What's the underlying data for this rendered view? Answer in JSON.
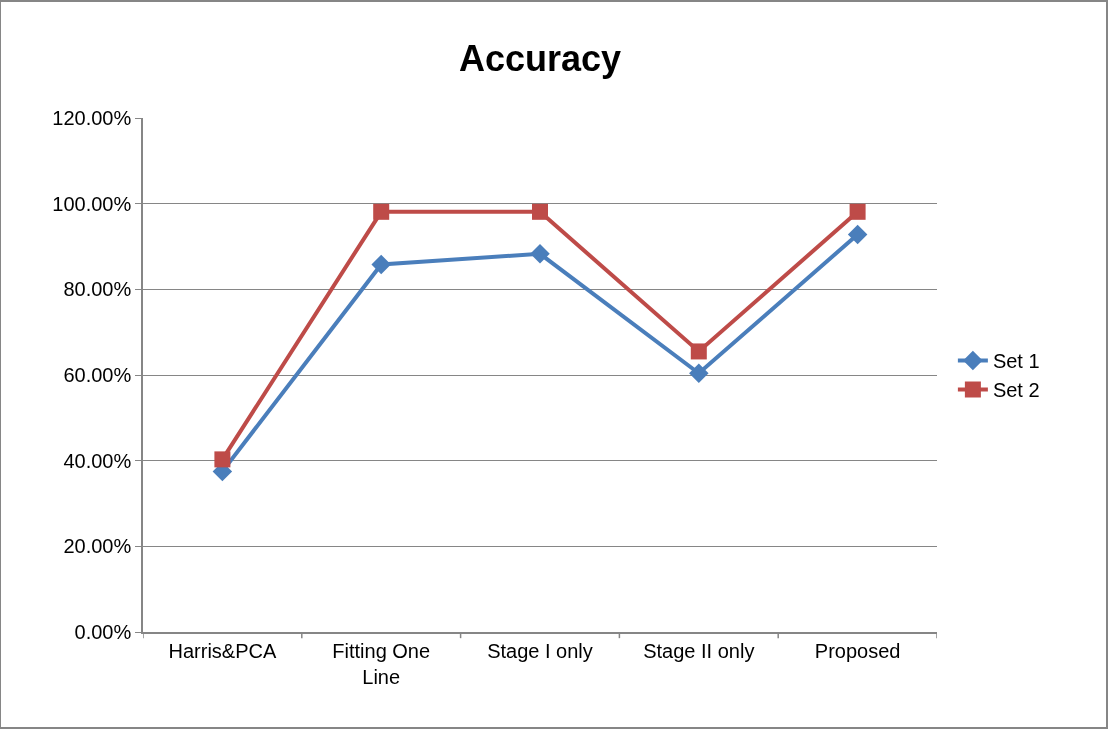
{
  "chart_data": {
    "type": "line",
    "title": "Accuracy",
    "categories": [
      "Harris&PCA",
      "Fitting One Line",
      "Stage I only",
      "Stage II only",
      "Proposed"
    ],
    "series": [
      {
        "name": "Set 1",
        "color": "#4a7ebb",
        "marker": "diamond",
        "values": [
          37.5,
          85.8,
          88.3,
          60.4,
          92.8
        ]
      },
      {
        "name": "Set 2",
        "color": "#be4b48",
        "marker": "square",
        "values": [
          40.3,
          98.1,
          98.1,
          65.5,
          98.1
        ]
      }
    ],
    "ylim": [
      0,
      120
    ],
    "yticks": [
      {
        "value": 0,
        "label": "0.00%"
      },
      {
        "value": 20,
        "label": "20.00%"
      },
      {
        "value": 40,
        "label": "40.00%"
      },
      {
        "value": 60,
        "label": "60.00%"
      },
      {
        "value": 80,
        "label": "80.00%"
      },
      {
        "value": 100,
        "label": "100.00%"
      },
      {
        "value": 120,
        "label": "120.00%"
      }
    ],
    "grid": "y",
    "legend": "right"
  }
}
